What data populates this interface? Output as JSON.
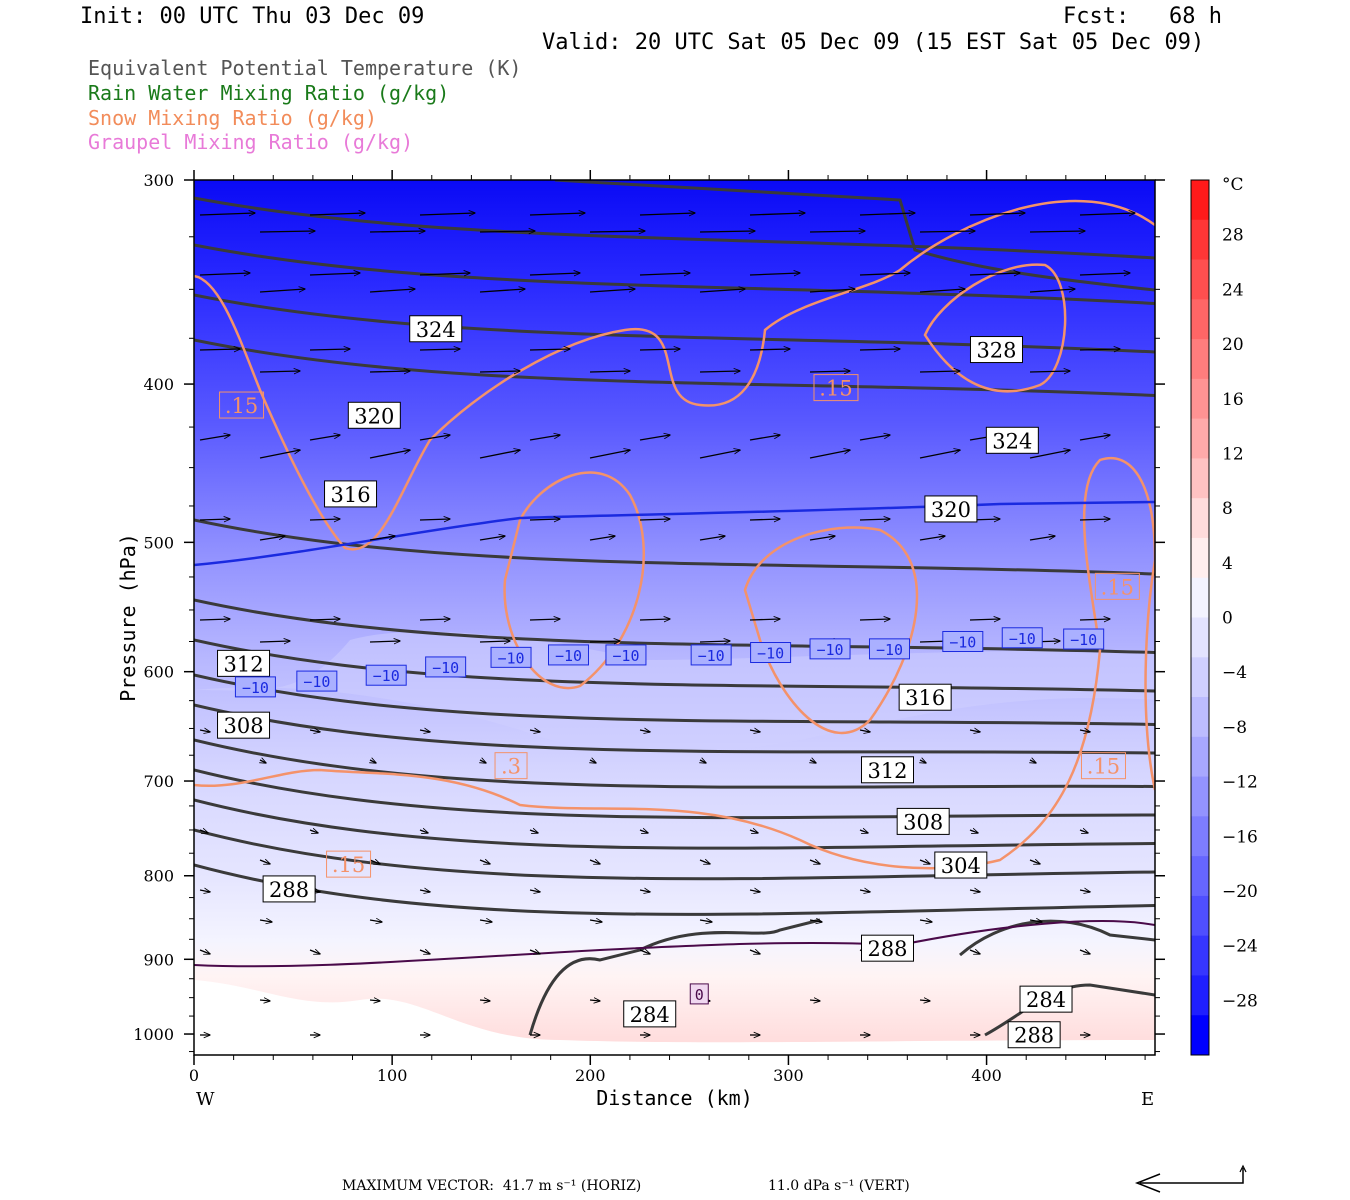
{
  "header": {
    "init": "Init: 00 UTC Thu 03 Dec 09",
    "fcst": "Fcst:   68 h",
    "valid": "Valid: 20 UTC Sat 05 Dec 09 (15 EST Sat 05 Dec 09)"
  },
  "legend": [
    {
      "label": "Equivalent Potential Temperature (K)",
      "color": "#555555"
    },
    {
      "label": "Rain Water Mixing Ratio (g/kg)",
      "color": "#1a7a1a"
    },
    {
      "label": "Snow Mixing Ratio (g/kg)",
      "color": "#f28c5a"
    },
    {
      "label": "Graupel Mixing Ratio (g/kg)",
      "color": "#e87ad8"
    }
  ],
  "chart_data": {
    "type": "heatmap",
    "xlabel": "Distance (km)",
    "ylabel": "Pressure (hPa)",
    "x_ticks": [
      0,
      100,
      200,
      300,
      400
    ],
    "y_ticks": [
      300,
      400,
      500,
      600,
      700,
      800,
      900,
      1000
    ],
    "xlim": [
      0,
      485
    ],
    "ylim": [
      1030,
      300
    ],
    "y_scale": "log",
    "west_label": "W",
    "east_label": "E",
    "colorbar": {
      "unit": "°C",
      "ticks": [
        28,
        24,
        20,
        16,
        12,
        8,
        4,
        0,
        -4,
        -8,
        -12,
        -16,
        -20,
        -24,
        -28
      ],
      "tick_labels": [
        "28",
        "24",
        "20",
        "16",
        "12",
        "8",
        "4",
        "0",
        "−4",
        "−8",
        "−12",
        "−16",
        "−20",
        "−24",
        "−28"
      ],
      "range": [
        -32,
        32
      ],
      "warm_color": "#ff1a1a",
      "cold_color": "#0000ff"
    },
    "theta_e_labels": [
      {
        "text": "324",
        "x": 122,
        "p": 370
      },
      {
        "text": "320",
        "x": 91,
        "p": 418
      },
      {
        "text": "316",
        "x": 79,
        "p": 467
      },
      {
        "text": "312",
        "x": 25,
        "p": 593
      },
      {
        "text": "308",
        "x": 25,
        "p": 647
      },
      {
        "text": "288",
        "x": 48,
        "p": 815
      },
      {
        "text": "328",
        "x": 405,
        "p": 381
      },
      {
        "text": "324",
        "x": 413,
        "p": 433
      },
      {
        "text": "320",
        "x": 382,
        "p": 477
      },
      {
        "text": "316",
        "x": 369,
        "p": 622
      },
      {
        "text": "312",
        "x": 350,
        "p": 689
      },
      {
        "text": "308",
        "x": 368,
        "p": 741
      },
      {
        "text": "304",
        "x": 387,
        "p": 788
      },
      {
        "text": "288",
        "x": 350,
        "p": 886
      },
      {
        "text": "284",
        "x": 230,
        "p": 972
      },
      {
        "text": "284",
        "x": 430,
        "p": 952
      },
      {
        "text": "288",
        "x": 424,
        "p": 1001
      }
    ],
    "temp_labels": [
      {
        "text": "−10",
        "x": 31,
        "p": 613
      },
      {
        "text": "−10",
        "x": 62,
        "p": 608
      },
      {
        "text": "−10",
        "x": 97,
        "p": 603
      },
      {
        "text": "−10",
        "x": 127,
        "p": 596
      },
      {
        "text": "−10",
        "x": 160,
        "p": 588
      },
      {
        "text": "−10",
        "x": 189,
        "p": 586
      },
      {
        "text": "−10",
        "x": 218,
        "p": 586
      },
      {
        "text": "−10",
        "x": 261,
        "p": 586
      },
      {
        "text": "−10",
        "x": 291,
        "p": 584
      },
      {
        "text": "−10",
        "x": 321,
        "p": 581
      },
      {
        "text": "−10",
        "x": 351,
        "p": 581
      },
      {
        "text": "−10",
        "x": 388,
        "p": 575
      },
      {
        "text": "−10",
        "x": 418,
        "p": 572
      },
      {
        "text": "−10",
        "x": 449,
        "p": 573
      },
      {
        "text": "0",
        "x": 255,
        "p": 945
      }
    ],
    "snow_labels": [
      {
        "text": ".15",
        "x": 24,
        "p": 412
      },
      {
        "text": ".15",
        "x": 324,
        "p": 402
      },
      {
        "text": ".15",
        "x": 466,
        "p": 532
      },
      {
        "text": ".3",
        "x": 160,
        "p": 685
      },
      {
        "text": ".15",
        "x": 459,
        "p": 685
      },
      {
        "text": ".15",
        "x": 78,
        "p": 787
      }
    ]
  },
  "colorbar_colors": [
    "#ff1a1a",
    "#ff3636",
    "#ff4f4f",
    "#ff6666",
    "#ff7d7d",
    "#ff9393",
    "#ffaaaa",
    "#ffc2c2",
    "#ffdcdc",
    "#ffeeee",
    "#f3f3ff",
    "#e3e3ff",
    "#d0d0ff",
    "#bcbcff",
    "#a8a8ff",
    "#9393ff",
    "#7d7dff",
    "#6666ff",
    "#4f4fff",
    "#3636ff",
    "#1f1fff",
    "#0000ff"
  ],
  "footer": {
    "max_vector": "MAXIMUM VECTOR:  41.7 m s⁻¹ (HORIZ)",
    "vert": "11.0 dPa s⁻¹ (VERT)"
  }
}
